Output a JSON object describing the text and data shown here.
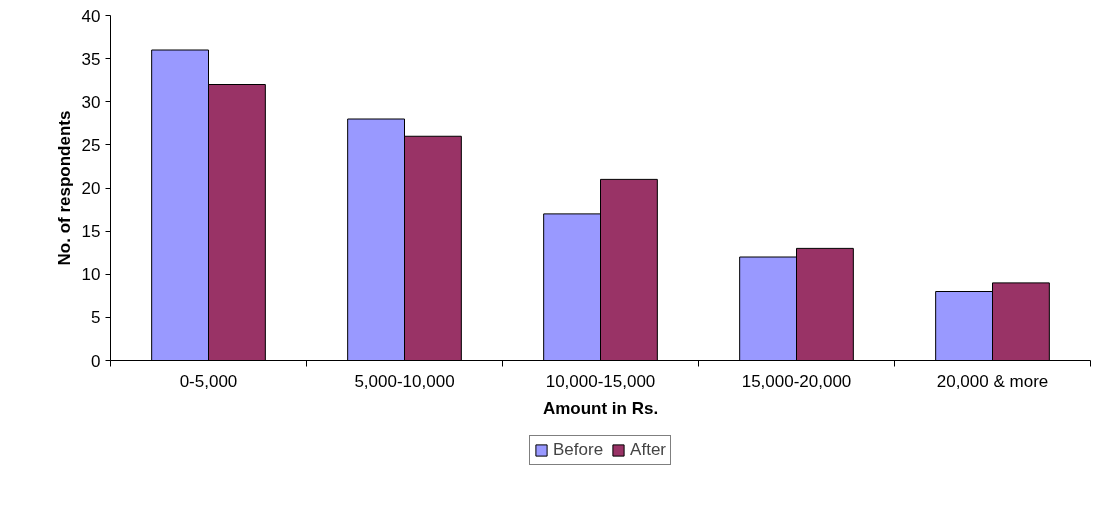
{
  "chart_data": {
    "type": "bar",
    "xlabel": "Amount in Rs.",
    "ylabel": "No. of respondents",
    "categories": [
      "0-5,000",
      "5,000-10,000",
      "10,000-15,000",
      "15,000-20,000",
      "20,000 & more"
    ],
    "series": [
      {
        "name": "Before",
        "color": "#9999ff",
        "values": [
          36,
          28,
          17,
          12,
          8
        ]
      },
      {
        "name": "After",
        "color": "#993366",
        "values": [
          32,
          26,
          21,
          13,
          9
        ]
      }
    ],
    "ylim": [
      0,
      40
    ],
    "yticks": [
      0,
      5,
      10,
      15,
      20,
      25,
      30,
      35,
      40
    ],
    "grid": false,
    "legend": "bottom"
  }
}
